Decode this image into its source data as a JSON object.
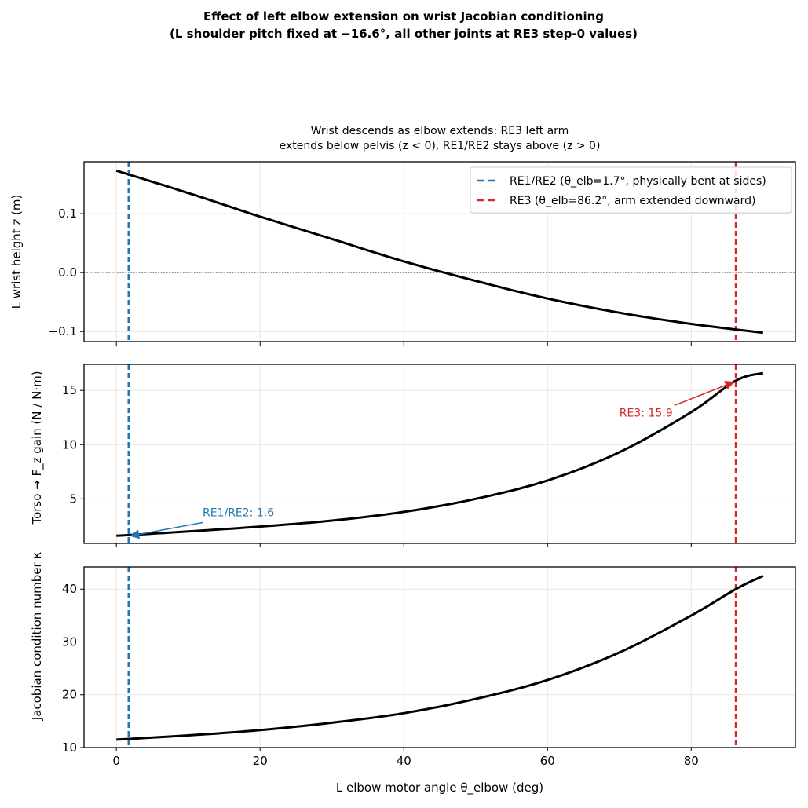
{
  "chart_data": {
    "title": "Effect of left elbow extension on wrist Jacobian conditioning",
    "subtitle": "(L shoulder pitch fixed at −16.6°, all other joints at RE3 step-0 values)",
    "xlabel": "L elbow motor angle θ_elbow (deg)",
    "xlim": [
      -4.5,
      94.5
    ],
    "xticks": [
      0,
      20,
      40,
      60,
      80
    ],
    "colors": {
      "re12": "#1f77b4",
      "re3": "#d62728",
      "curve": "#000000"
    },
    "vlines": [
      {
        "x": 1.7,
        "label": "RE1/RE2 (θ_elb=1.7°, physically bent at sides)",
        "color": "#1f77b4"
      },
      {
        "x": 86.2,
        "label": "RE3 (θ_elb=86.2°, arm extended downward)",
        "color": "#d62728"
      }
    ],
    "panels": [
      {
        "type": "line",
        "title_lines": [
          "Wrist descends as elbow extends: RE3 left arm",
          "extends below pelvis (z < 0), RE1/RE2 stays above (z > 0)"
        ],
        "ylabel": "L wrist height z (m)",
        "ylim": [
          -0.117,
          0.188
        ],
        "yticks": [
          -0.1,
          0.0,
          0.1
        ],
        "ytick_labels": [
          "−0.1",
          "0.0",
          "0.1"
        ],
        "grid": true,
        "zero_line": true,
        "legend": "upper right",
        "x": [
          0,
          10,
          20,
          30,
          40,
          50,
          60,
          70,
          80,
          90
        ],
        "y": [
          0.173,
          0.135,
          0.095,
          0.057,
          0.019,
          -0.014,
          -0.044,
          -0.068,
          -0.087,
          -0.102
        ]
      },
      {
        "type": "line",
        "ylabel": "Torso → F_z gain (N / N·m)",
        "ylim": [
          0.9,
          17.4
        ],
        "yticks": [
          5,
          10,
          15
        ],
        "ytick_labels": [
          "5",
          "10",
          "15"
        ],
        "grid": true,
        "x": [
          0,
          10,
          20,
          30,
          40,
          50,
          60,
          70,
          80,
          86.2,
          90
        ],
        "y": [
          1.6,
          2.0,
          2.45,
          3.0,
          3.8,
          5.0,
          6.7,
          9.3,
          13.0,
          15.9,
          16.6
        ],
        "annotations": [
          {
            "text": "RE1/RE2: 1.6",
            "x": 1.7,
            "y": 1.6,
            "tx": 12,
            "ty": 3.4,
            "color": "#1f77b4"
          },
          {
            "text": "RE3: 15.9",
            "x": 86.2,
            "y": 15.9,
            "tx": 70,
            "ty": 12.6,
            "color": "#d62728"
          }
        ]
      },
      {
        "type": "line",
        "ylabel": "Jacobian condition number κ",
        "ylim": [
          10,
          44.2
        ],
        "yticks": [
          10,
          20,
          30,
          40
        ],
        "ytick_labels": [
          "10",
          "20",
          "30",
          "40"
        ],
        "grid": true,
        "x": [
          0,
          10,
          20,
          30,
          40,
          50,
          60,
          70,
          80,
          86.2,
          90
        ],
        "y": [
          11.5,
          12.3,
          13.3,
          14.7,
          16.5,
          19.2,
          22.8,
          28.0,
          35.0,
          40.0,
          42.5
        ]
      }
    ]
  }
}
